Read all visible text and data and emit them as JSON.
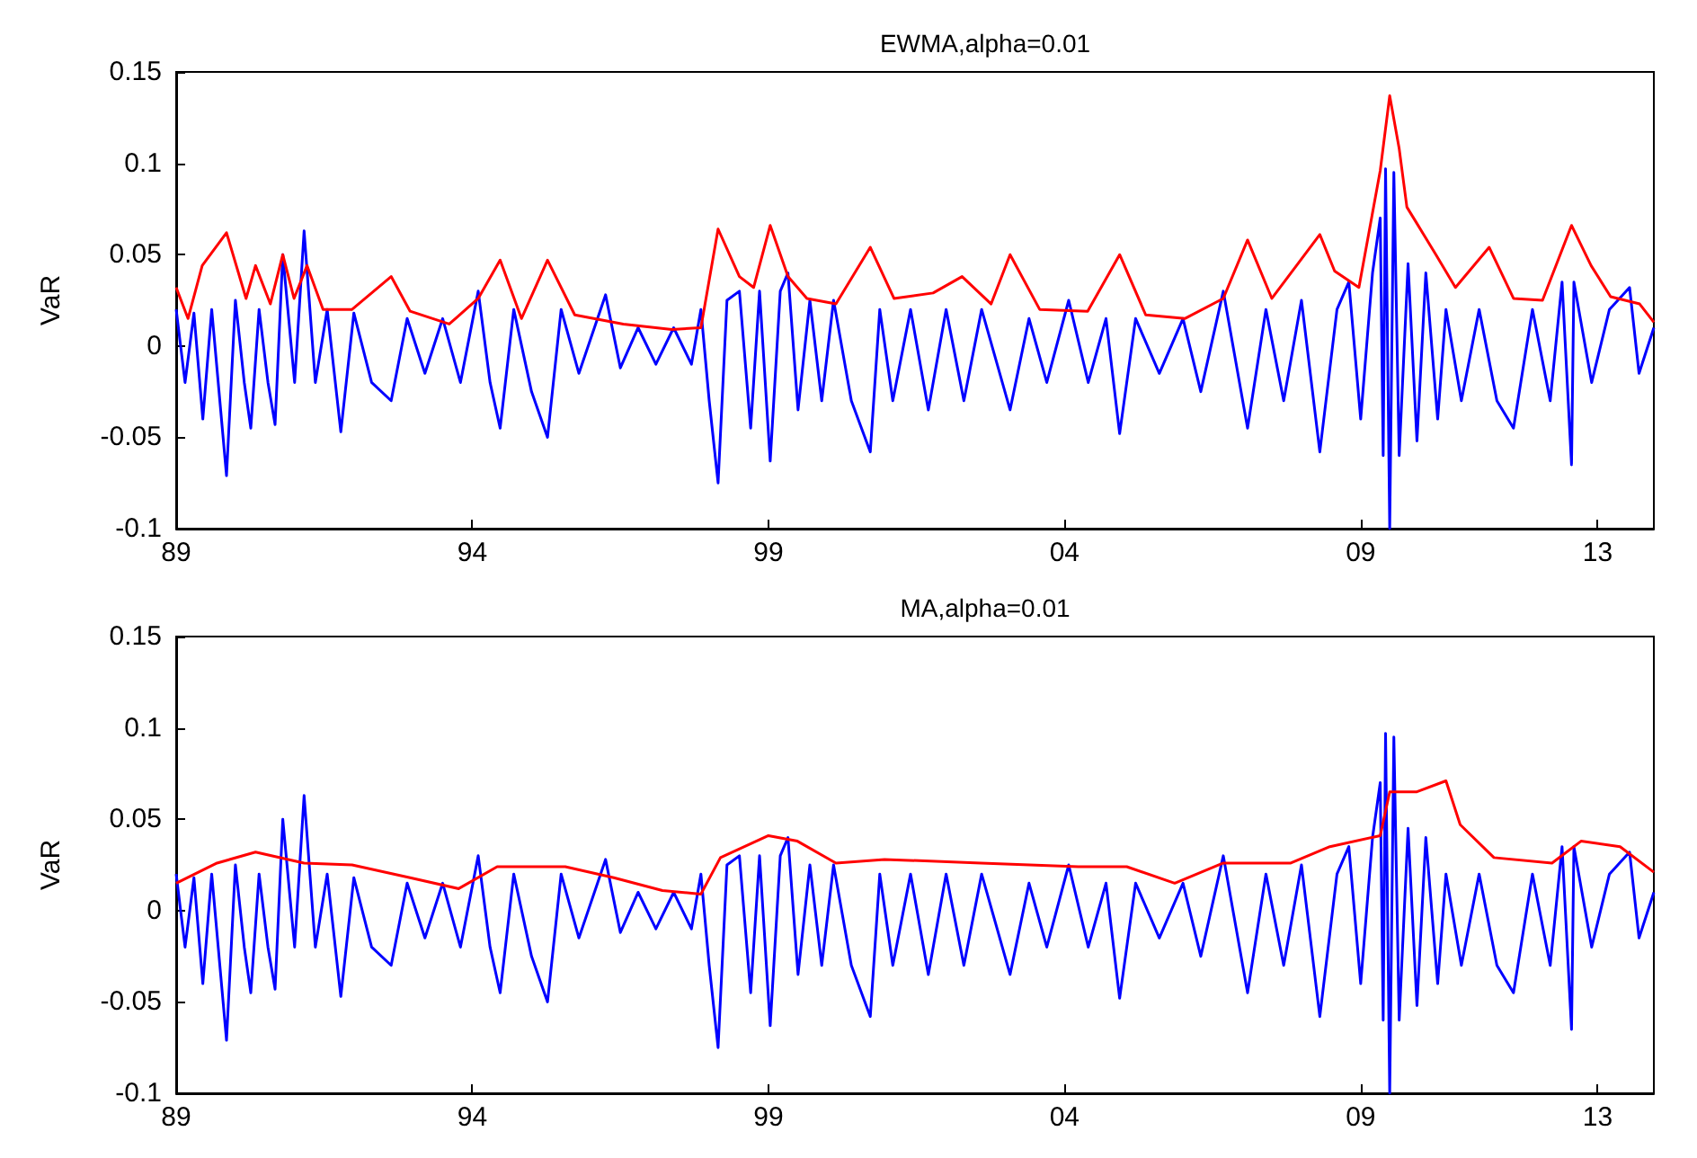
{
  "chart_data": [
    {
      "type": "line",
      "title": "EWMA,alpha=0.01",
      "ylabel": "VaR",
      "xlim": [
        1989,
        2013.95
      ],
      "ylim": [
        -0.1,
        0.15
      ],
      "xticks": [
        {
          "value": 1989,
          "label": "89"
        },
        {
          "value": 1994,
          "label": "94"
        },
        {
          "value": 1999,
          "label": "99"
        },
        {
          "value": 2004,
          "label": "04"
        },
        {
          "value": 2009,
          "label": "09"
        },
        {
          "value": 2013,
          "label": "13"
        }
      ],
      "yticks": [
        -0.1,
        -0.05,
        0,
        0.05,
        0.1,
        0.15
      ],
      "grid": false,
      "marker": "none",
      "series": [
        {
          "color": "#0000ff",
          "x": [
            1989.0,
            1989.15,
            1989.3,
            1989.45,
            1989.6,
            1989.85,
            1990.0,
            1990.15,
            1990.26,
            1990.4,
            1990.55,
            1990.67,
            1990.8,
            1991.0,
            1991.16,
            1991.35,
            1991.55,
            1991.78,
            1992.0,
            1992.3,
            1992.63,
            1992.9,
            1993.2,
            1993.5,
            1993.8,
            1994.1,
            1994.3,
            1994.47,
            1994.7,
            1995.0,
            1995.27,
            1995.5,
            1995.8,
            1996.25,
            1996.5,
            1996.8,
            1997.1,
            1997.4,
            1997.7,
            1997.86,
            1998.0,
            1998.15,
            1998.3,
            1998.51,
            1998.7,
            1998.85,
            1999.03,
            1999.2,
            1999.33,
            1999.5,
            1999.7,
            1999.9,
            2000.1,
            2000.4,
            2000.72,
            2000.88,
            2001.1,
            2001.4,
            2001.7,
            2002.0,
            2002.3,
            2002.6,
            2003.08,
            2003.4,
            2003.7,
            2004.07,
            2004.4,
            2004.7,
            2004.93,
            2005.2,
            2005.6,
            2006.0,
            2006.3,
            2006.68,
            2007.09,
            2007.4,
            2007.7,
            2008.0,
            2008.31,
            2008.6,
            2008.8,
            2009.0,
            2009.2,
            2009.33,
            2009.38,
            2009.42,
            2009.49,
            2009.56,
            2009.65,
            2009.8,
            2009.95,
            2010.1,
            2010.3,
            2010.44,
            2010.7,
            2011.0,
            2011.3,
            2011.58,
            2011.9,
            2012.2,
            2012.4,
            2012.56,
            2012.6,
            2012.9,
            2013.2,
            2013.54,
            2013.7,
            2013.95
          ],
          "values": [
            0.02,
            -0.02,
            0.018,
            -0.04,
            0.02,
            -0.071,
            0.025,
            -0.02,
            -0.045,
            0.02,
            -0.02,
            -0.043,
            0.05,
            -0.02,
            0.063,
            -0.02,
            0.02,
            -0.047,
            0.018,
            -0.02,
            -0.03,
            0.015,
            -0.015,
            0.015,
            -0.02,
            0.03,
            -0.02,
            -0.045,
            0.02,
            -0.025,
            -0.05,
            0.02,
            -0.015,
            0.028,
            -0.012,
            0.01,
            -0.01,
            0.01,
            -0.01,
            0.02,
            -0.03,
            -0.075,
            0.025,
            0.03,
            -0.045,
            0.03,
            -0.063,
            0.03,
            0.04,
            -0.035,
            0.025,
            -0.03,
            0.025,
            -0.03,
            -0.058,
            0.02,
            -0.03,
            0.02,
            -0.035,
            0.02,
            -0.03,
            0.02,
            -0.035,
            0.015,
            -0.02,
            0.025,
            -0.02,
            0.015,
            -0.048,
            0.015,
            -0.015,
            0.015,
            -0.025,
            0.03,
            -0.045,
            0.02,
            -0.03,
            0.025,
            -0.058,
            0.02,
            0.035,
            -0.04,
            0.04,
            0.07,
            -0.06,
            0.097,
            -0.1,
            0.095,
            -0.06,
            0.045,
            -0.052,
            0.04,
            -0.04,
            0.02,
            -0.03,
            0.02,
            -0.03,
            -0.045,
            0.02,
            -0.03,
            0.035,
            -0.065,
            0.035,
            -0.02,
            0.02,
            0.032,
            -0.015,
            0.01
          ]
        },
        {
          "color": "#ff0000",
          "x": [
            1989.0,
            1989.2,
            1989.44,
            1989.85,
            1990.18,
            1990.34,
            1990.59,
            1990.8,
            1990.99,
            1991.21,
            1991.48,
            1991.97,
            1992.63,
            1992.95,
            1993.61,
            1994.1,
            1994.47,
            1994.83,
            1995.27,
            1995.73,
            1996.55,
            1997.37,
            1997.86,
            1998.15,
            1998.51,
            1998.75,
            1999.03,
            1999.33,
            1999.65,
            2000.14,
            2000.72,
            2001.12,
            2001.78,
            2002.27,
            2002.76,
            2003.08,
            2003.58,
            2004.39,
            2004.93,
            2005.37,
            2006.03,
            2006.68,
            2007.09,
            2007.5,
            2008.31,
            2008.56,
            2008.97,
            2009.33,
            2009.49,
            2009.65,
            2009.78,
            2009.95,
            2010.27,
            2010.6,
            2011.17,
            2011.58,
            2012.07,
            2012.56,
            2012.89,
            2013.22,
            2013.71,
            2013.95
          ],
          "values": [
            0.032,
            0.015,
            0.044,
            0.062,
            0.026,
            0.044,
            0.023,
            0.05,
            0.026,
            0.044,
            0.02,
            0.02,
            0.038,
            0.019,
            0.012,
            0.026,
            0.047,
            0.015,
            0.047,
            0.017,
            0.012,
            0.009,
            0.01,
            0.064,
            0.038,
            0.032,
            0.066,
            0.038,
            0.026,
            0.023,
            0.054,
            0.026,
            0.029,
            0.038,
            0.023,
            0.05,
            0.02,
            0.019,
            0.05,
            0.017,
            0.015,
            0.026,
            0.058,
            0.026,
            0.061,
            0.041,
            0.032,
            0.096,
            0.137,
            0.108,
            0.076,
            0.067,
            0.05,
            0.032,
            0.054,
            0.026,
            0.025,
            0.066,
            0.044,
            0.027,
            0.023,
            0.013
          ]
        }
      ]
    },
    {
      "type": "line",
      "title": "MA,alpha=0.01",
      "ylabel": "VaR",
      "xlim": [
        1989,
        2013.95
      ],
      "ylim": [
        -0.1,
        0.15
      ],
      "xticks": [
        {
          "value": 1989,
          "label": "89"
        },
        {
          "value": 1994,
          "label": "94"
        },
        {
          "value": 1999,
          "label": "99"
        },
        {
          "value": 2004,
          "label": "04"
        },
        {
          "value": 2009,
          "label": "09"
        },
        {
          "value": 2013,
          "label": "13"
        }
      ],
      "yticks": [
        -0.1,
        -0.05,
        0,
        0.05,
        0.1,
        0.15
      ],
      "grid": false,
      "marker": "none",
      "series": [
        {
          "color": "#0000ff",
          "x": [
            1989.0,
            1989.15,
            1989.3,
            1989.45,
            1989.6,
            1989.85,
            1990.0,
            1990.15,
            1990.26,
            1990.4,
            1990.55,
            1990.67,
            1990.8,
            1991.0,
            1991.16,
            1991.35,
            1991.55,
            1991.78,
            1992.0,
            1992.3,
            1992.63,
            1992.9,
            1993.2,
            1993.5,
            1993.8,
            1994.1,
            1994.3,
            1994.47,
            1994.7,
            1995.0,
            1995.27,
            1995.5,
            1995.8,
            1996.25,
            1996.5,
            1996.8,
            1997.1,
            1997.4,
            1997.7,
            1997.86,
            1998.0,
            1998.15,
            1998.3,
            1998.51,
            1998.7,
            1998.85,
            1999.03,
            1999.2,
            1999.33,
            1999.5,
            1999.7,
            1999.9,
            2000.1,
            2000.4,
            2000.72,
            2000.88,
            2001.1,
            2001.4,
            2001.7,
            2002.0,
            2002.3,
            2002.6,
            2003.08,
            2003.4,
            2003.7,
            2004.07,
            2004.4,
            2004.7,
            2004.93,
            2005.2,
            2005.6,
            2006.0,
            2006.3,
            2006.68,
            2007.09,
            2007.4,
            2007.7,
            2008.0,
            2008.31,
            2008.6,
            2008.8,
            2009.0,
            2009.2,
            2009.33,
            2009.38,
            2009.42,
            2009.49,
            2009.56,
            2009.65,
            2009.8,
            2009.95,
            2010.1,
            2010.3,
            2010.44,
            2010.7,
            2011.0,
            2011.3,
            2011.58,
            2011.9,
            2012.2,
            2012.4,
            2012.56,
            2012.6,
            2012.9,
            2013.2,
            2013.54,
            2013.7,
            2013.95
          ],
          "values": [
            0.02,
            -0.02,
            0.018,
            -0.04,
            0.02,
            -0.071,
            0.025,
            -0.02,
            -0.045,
            0.02,
            -0.02,
            -0.043,
            0.05,
            -0.02,
            0.063,
            -0.02,
            0.02,
            -0.047,
            0.018,
            -0.02,
            -0.03,
            0.015,
            -0.015,
            0.015,
            -0.02,
            0.03,
            -0.02,
            -0.045,
            0.02,
            -0.025,
            -0.05,
            0.02,
            -0.015,
            0.028,
            -0.012,
            0.01,
            -0.01,
            0.01,
            -0.01,
            0.02,
            -0.03,
            -0.075,
            0.025,
            0.03,
            -0.045,
            0.03,
            -0.063,
            0.03,
            0.04,
            -0.035,
            0.025,
            -0.03,
            0.025,
            -0.03,
            -0.058,
            0.02,
            -0.03,
            0.02,
            -0.035,
            0.02,
            -0.03,
            0.02,
            -0.035,
            0.015,
            -0.02,
            0.025,
            -0.02,
            0.015,
            -0.048,
            0.015,
            -0.015,
            0.015,
            -0.025,
            0.03,
            -0.045,
            0.02,
            -0.03,
            0.025,
            -0.058,
            0.02,
            0.035,
            -0.04,
            0.04,
            0.07,
            -0.06,
            0.097,
            -0.1,
            0.095,
            -0.06,
            0.045,
            -0.052,
            0.04,
            -0.04,
            0.02,
            -0.03,
            0.02,
            -0.03,
            -0.045,
            0.02,
            -0.03,
            0.035,
            -0.065,
            0.035,
            -0.02,
            0.02,
            0.032,
            -0.015,
            0.01
          ]
        },
        {
          "color": "#ff0000",
          "x": [
            1989.0,
            1989.69,
            1990.34,
            1991.16,
            1991.97,
            1992.95,
            1993.77,
            1994.42,
            1995.57,
            1996.39,
            1997.21,
            1997.86,
            1998.19,
            1999.0,
            1999.49,
            2000.14,
            2000.96,
            2002.59,
            2004.23,
            2005.05,
            2005.86,
            2006.68,
            2007.82,
            2008.48,
            2009.33,
            2009.49,
            2009.95,
            2010.44,
            2010.68,
            2011.25,
            2012.23,
            2012.72,
            2013.38,
            2013.95
          ],
          "values": [
            0.015,
            0.026,
            0.032,
            0.026,
            0.025,
            0.018,
            0.012,
            0.024,
            0.024,
            0.018,
            0.011,
            0.009,
            0.029,
            0.041,
            0.038,
            0.026,
            0.028,
            0.026,
            0.024,
            0.024,
            0.015,
            0.026,
            0.026,
            0.035,
            0.041,
            0.065,
            0.065,
            0.071,
            0.047,
            0.029,
            0.026,
            0.038,
            0.035,
            0.021
          ]
        }
      ]
    }
  ]
}
